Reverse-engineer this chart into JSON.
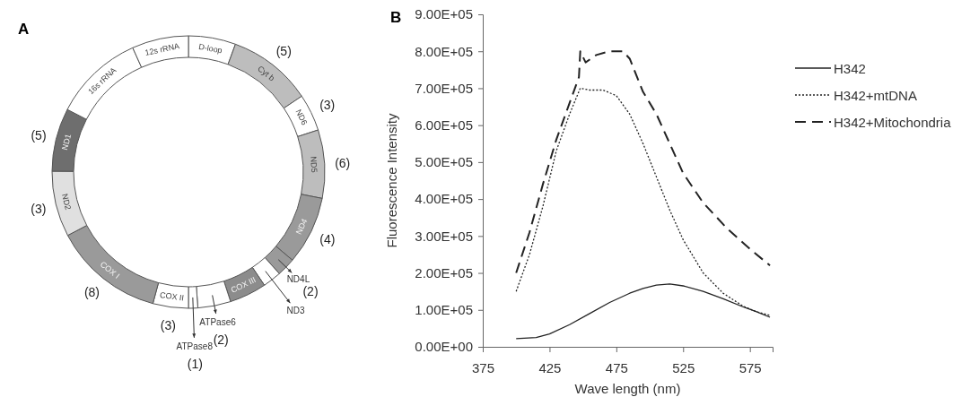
{
  "chart_data": [
    {
      "type": "donut",
      "title": "A",
      "categories": [
        "D-loop",
        "Cyt b",
        "ND6",
        "ND5",
        "ND4",
        "ND4L",
        "ND3",
        "COX III",
        "ATPase6",
        "ATPase8",
        "COX II",
        "COX I",
        "ND2",
        "ND1",
        "16s rRNA",
        "12s rRNA"
      ],
      "values": [
        5.6,
        10,
        4.4,
        8.1,
        8.1,
        2.2,
        2.2,
        4.4,
        3.9,
        1.1,
        4.2,
        13.1,
        7.8,
        7.5,
        10.7,
        6.7
      ],
      "colors": [
        "#ffffff",
        "#bdbdbd",
        "#ffffff",
        "#bdbdbd",
        "#9a9a9a",
        "#9a9a9a",
        "#ffffff",
        "#8c8c8c",
        "#ffffff",
        "#ffffff",
        "#ffffff",
        "#9a9a9a",
        "#e0e0e0",
        "#6e6e6e",
        "#ffffff",
        "#ffffff"
      ],
      "annotations": [
        {
          "text": "(5)",
          "x": "Cyt b"
        },
        {
          "text": "(3)",
          "x": "ND6"
        },
        {
          "text": "(6)",
          "x": "ND5"
        },
        {
          "text": "(4)",
          "x": "ND4"
        },
        {
          "text": "(2)",
          "x": "ND4L"
        },
        {
          "text": "(2)",
          "x": "ATPase6"
        },
        {
          "text": "(1)",
          "x": "ATPase8"
        },
        {
          "text": "(3)",
          "x": "COX II"
        },
        {
          "text": "(8)",
          "x": "COX I"
        },
        {
          "text": "(3)",
          "x": "ND2"
        },
        {
          "text": "(5)",
          "x": "ND1"
        }
      ]
    },
    {
      "type": "line",
      "title": "B",
      "xlabel": "Wave length (nm)",
      "ylabel": "Fluorescence Intensity",
      "xlim": [
        375,
        592
      ],
      "xticks": [
        375,
        425,
        475,
        525,
        575
      ],
      "ylim": [
        0,
        900000
      ],
      "yticks": [
        {
          "value": 0,
          "label": "0.00E+00"
        },
        {
          "value": 100000,
          "label": "1.00E+05"
        },
        {
          "value": 200000,
          "label": "2.00E+05"
        },
        {
          "value": 300000,
          "label": "3.00E+05"
        },
        {
          "value": 400000,
          "label": "4.00E+05"
        },
        {
          "value": 500000,
          "label": "5.00E+05"
        },
        {
          "value": 600000,
          "label": "6.00E+05"
        },
        {
          "value": 700000,
          "label": "7.00E+05"
        },
        {
          "value": 800000,
          "label": "8.00E+05"
        },
        {
          "value": 900000,
          "label": "9.00E+05"
        }
      ],
      "legend": "right",
      "grid": false,
      "series": [
        {
          "name": "H342",
          "color": "#222222",
          "line_style": "solid",
          "x": [
            400,
            415,
            425,
            440,
            455,
            470,
            485,
            495,
            505,
            515,
            525,
            540,
            555,
            570,
            580,
            590
          ],
          "values": [
            22000,
            25000,
            35000,
            60000,
            90000,
            120000,
            145000,
            158000,
            167000,
            170000,
            165000,
            150000,
            130000,
            108000,
            95000,
            80000
          ]
        },
        {
          "name": "H342+mtDNA",
          "color": "#222222",
          "line_style": "dotted",
          "x": [
            400,
            410,
            420,
            430,
            440,
            448,
            455,
            465,
            475,
            485,
            495,
            505,
            515,
            525,
            540,
            555,
            570,
            580,
            590
          ],
          "values": [
            150000,
            250000,
            380000,
            530000,
            630000,
            700000,
            695000,
            695000,
            680000,
            630000,
            550000,
            460000,
            370000,
            290000,
            200000,
            145000,
            110000,
            95000,
            85000
          ]
        },
        {
          "name": "H342+Mitochondria",
          "color": "#222222",
          "line_style": "dashed",
          "x": [
            400,
            410,
            420,
            430,
            440,
            447,
            448,
            452,
            460,
            470,
            480,
            485,
            495,
            505,
            515,
            525,
            540,
            558,
            575,
            590
          ],
          "values": [
            200000,
            310000,
            440000,
            560000,
            660000,
            730000,
            800000,
            770000,
            790000,
            800000,
            800000,
            780000,
            690000,
            630000,
            550000,
            470000,
            390000,
            320000,
            265000,
            220000
          ]
        }
      ]
    }
  ]
}
